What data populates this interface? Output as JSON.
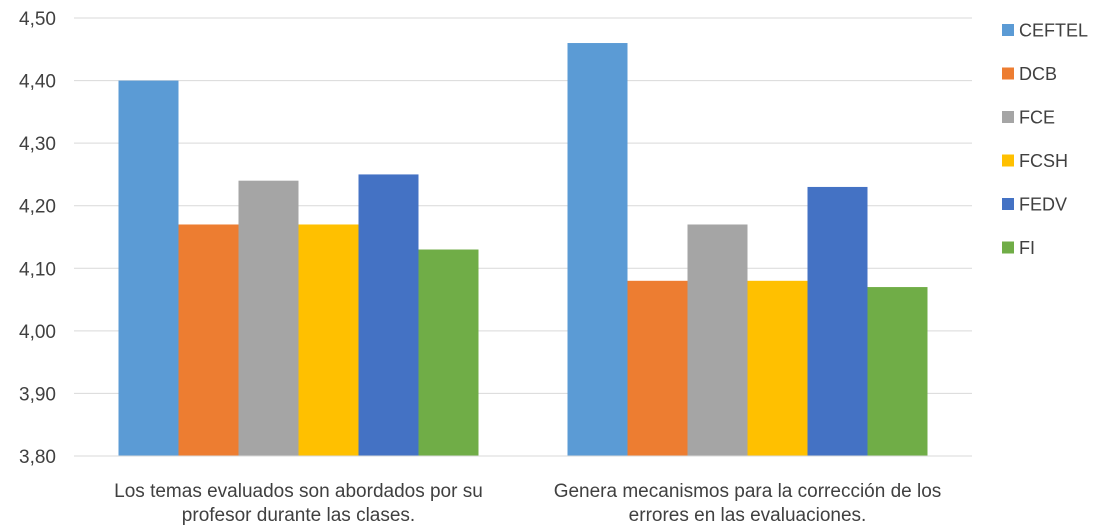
{
  "chart_data": {
    "type": "bar",
    "categories": [
      [
        "Los temas evaluados son abordados por su",
        "profesor durante las clases."
      ],
      [
        "Genera mecanismos para la corrección de los",
        "errores en las evaluaciones."
      ]
    ],
    "series": [
      {
        "name": "CEFTEL",
        "color": "#5B9BD5",
        "values": [
          4.4,
          4.46
        ]
      },
      {
        "name": "DCB",
        "color": "#ED7D31",
        "values": [
          4.17,
          4.08
        ]
      },
      {
        "name": "FCE",
        "color": "#A5A5A5",
        "values": [
          4.24,
          4.17
        ]
      },
      {
        "name": "FCSH",
        "color": "#FFC000",
        "values": [
          4.17,
          4.08
        ]
      },
      {
        "name": "FEDV",
        "color": "#4472C4",
        "values": [
          4.25,
          4.23
        ]
      },
      {
        "name": "FI",
        "color": "#70AD47",
        "values": [
          4.13,
          4.07
        ]
      }
    ],
    "ylim": [
      3.8,
      4.5
    ],
    "y_ticks": [
      "3,80",
      "3,90",
      "4,00",
      "4,10",
      "4,20",
      "4,30",
      "4,40",
      "4,50"
    ],
    "grid": true,
    "legend_position": "right"
  }
}
